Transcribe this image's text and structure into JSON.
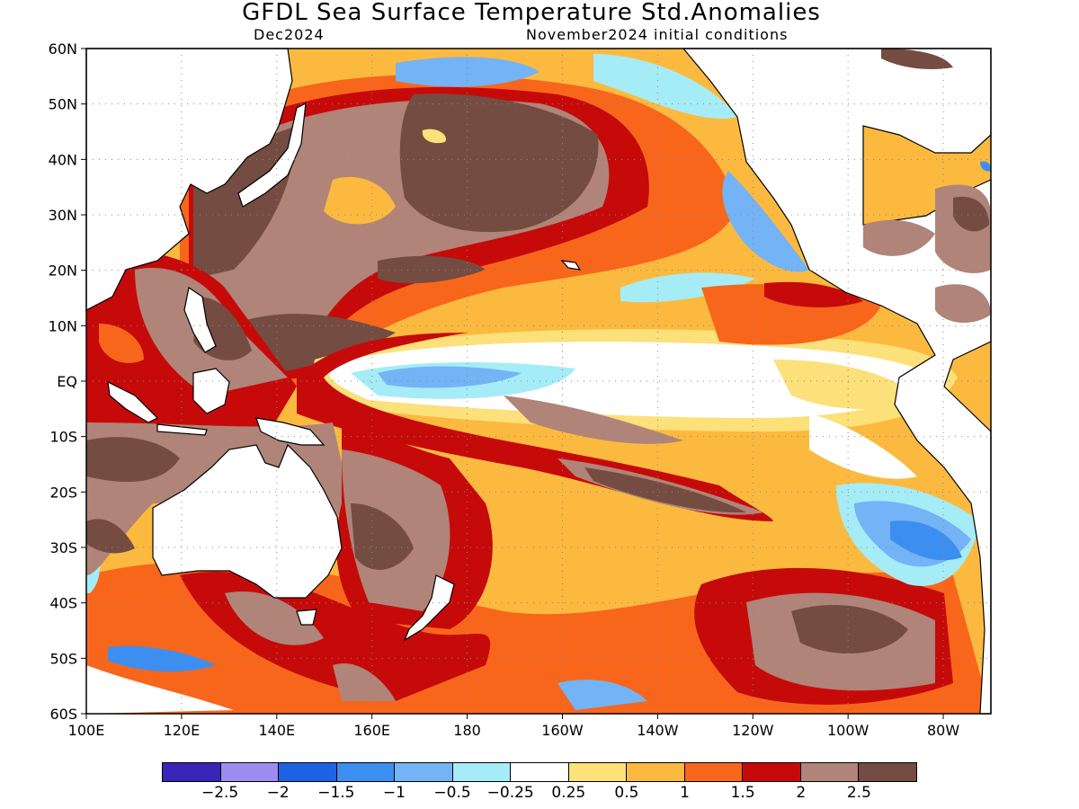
{
  "title": "GFDL Sea Surface Temperature Std.Anomalies",
  "subtitle_left": "Dec2024",
  "subtitle_right": "November2024 initial conditions",
  "map": {
    "lat_labels": [
      "60N",
      "50N",
      "40N",
      "30N",
      "20N",
      "10N",
      "EQ",
      "10S",
      "20S",
      "30S",
      "40S",
      "50S",
      "60S"
    ],
    "lon_labels": [
      "100E",
      "120E",
      "140E",
      "160E",
      "180",
      "160W",
      "140W",
      "120W",
      "100W",
      "80W"
    ],
    "lon_range": [
      100,
      290
    ],
    "lat_range": [
      -60,
      60
    ],
    "grid": "dotted",
    "colors": {
      "neg_strong": "#2f7ae6",
      "neg_mid": "#65aef5",
      "neg_weak": "#a8ebf6",
      "neutral": "#ffffff",
      "pos_025": "#fce07a",
      "pos_05": "#fbba3f",
      "pos_1": "#f8661c",
      "pos_15": "#c60a0a",
      "pos_2": "#b08478",
      "pos_25": "#744c41"
    }
  },
  "legend": {
    "colors": [
      "#3b24b8",
      "#9c8cf2",
      "#1e62e5",
      "#3c8ff0",
      "#74b3f5",
      "#a6ecf7",
      "#ffffff",
      "#fde27a",
      "#fbba3f",
      "#f8661c",
      "#c60a0a",
      "#b08478",
      "#744c41"
    ],
    "labels": [
      "-2.5",
      "-2",
      "-1.5",
      "-1",
      "-0.5",
      "-0.25",
      "0.25",
      "0.5",
      "1",
      "1.5",
      "2",
      "2.5"
    ]
  }
}
